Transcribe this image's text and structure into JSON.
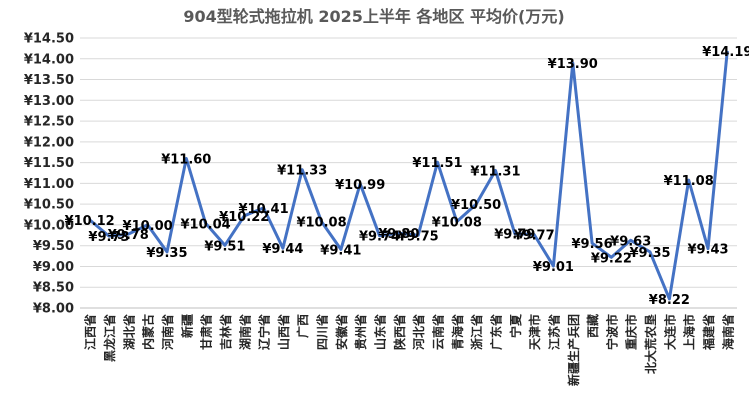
{
  "chart_data": {
    "type": "line",
    "title": "904型轮式拖拉机  2025上半年  各地区  平均价(万元)",
    "currency_prefix": "¥",
    "ylim": [
      8.0,
      14.5
    ],
    "ytick_step": 0.5,
    "grid": true,
    "line_color": "#4472C4",
    "categories": [
      "江西省",
      "黑龙江省",
      "湖北省",
      "内蒙古",
      "河南省",
      "新疆",
      "甘肃省",
      "吉林省",
      "湖南省",
      "辽宁省",
      "山西省",
      "广西",
      "四川省",
      "安徽省",
      "贵州省",
      "山东省",
      "陕西省",
      "河北省",
      "云南省",
      "青海省",
      "浙江省",
      "广东省",
      "宁夏",
      "天津市",
      "江苏省",
      "新疆生产兵团",
      "西藏",
      "宁波市",
      "重庆市",
      "北大荒农垦",
      "大连市",
      "上海市",
      "福建省",
      "海南省"
    ],
    "values": [
      10.12,
      9.73,
      9.78,
      10.0,
      9.35,
      11.6,
      10.04,
      9.51,
      10.22,
      10.41,
      9.44,
      11.33,
      10.08,
      9.41,
      10.99,
      9.74,
      9.8,
      9.75,
      11.51,
      10.08,
      10.5,
      11.31,
      9.79,
      9.77,
      9.01,
      13.9,
      9.56,
      9.22,
      9.63,
      9.35,
      8.22,
      11.08,
      9.43,
      14.19
    ],
    "data_labels": [
      "¥10.12",
      "¥9.73",
      "¥9.78",
      "¥10.00",
      "¥9.35",
      "¥11.60",
      "¥10.04",
      "¥9.51",
      "¥10.22",
      "¥10.41",
      "¥9.44",
      "¥11.33",
      "¥10.08",
      "¥9.41",
      "¥10.99",
      "¥9.74",
      "¥9.80",
      "¥9.75",
      "¥11.51",
      "¥10.08",
      "¥10.50",
      "¥11.31",
      "¥9.79",
      "¥9.77",
      "¥9.01",
      "¥13.90",
      "¥9.56",
      "¥9.22",
      "¥9.63",
      "¥9.35",
      "¥8.22",
      "¥11.08",
      "¥9.43",
      "¥14.19"
    ]
  }
}
